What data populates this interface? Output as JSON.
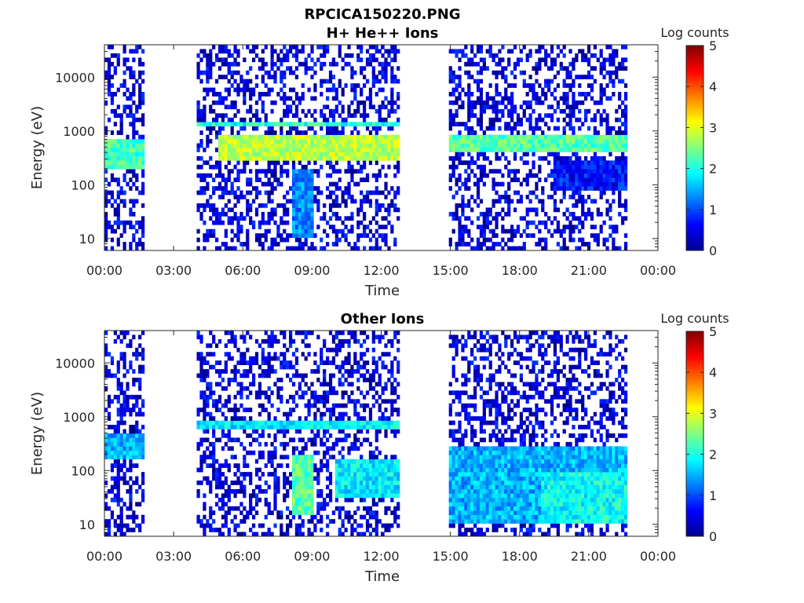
{
  "figure_title": "RPCICA150220.PNG",
  "chart_data": [
    {
      "type": "heatmap",
      "title": "H+ He++ Ions",
      "xlabel": "Time",
      "ylabel": "Energy (eV)",
      "y_scale": "log",
      "y_range_eV": [
        6,
        40000
      ],
      "x_range_hours": [
        0,
        24
      ],
      "x_ticks": [
        "00:00",
        "03:00",
        "06:00",
        "09:00",
        "12:00",
        "15:00",
        "18:00",
        "21:00",
        "00:00"
      ],
      "y_ticks": [
        "10",
        "100",
        "1000",
        "10000"
      ],
      "colorbar": {
        "label": "Log counts",
        "min": 0,
        "max": 5,
        "ticks": [
          "0",
          "1",
          "2",
          "3",
          "4",
          "5"
        ],
        "colormap": "jet"
      },
      "data_intervals_hours": [
        [
          0.0,
          1.7
        ],
        [
          4.0,
          12.8
        ],
        [
          15.0,
          22.7
        ]
      ],
      "features": [
        {
          "time_hours": [
            0.0,
            1.7
          ],
          "energy_eV": [
            200,
            700
          ],
          "log_counts": 2.2
        },
        {
          "time_hours": [
            4.0,
            12.8
          ],
          "energy_eV": [
            1200,
            1600
          ],
          "log_counts": 2.0
        },
        {
          "time_hours": [
            5.0,
            12.8
          ],
          "energy_eV": [
            300,
            800
          ],
          "log_counts": 2.8
        },
        {
          "time_hours": [
            8.2,
            9.0
          ],
          "energy_eV": [
            10,
            200
          ],
          "log_counts": 1.3
        },
        {
          "time_hours": [
            15.0,
            22.7
          ],
          "energy_eV": [
            400,
            800
          ],
          "log_counts": 2.3
        },
        {
          "time_hours": [
            19.5,
            22.7
          ],
          "energy_eV": [
            80,
            300
          ],
          "log_counts": 0.7
        }
      ],
      "grid": false
    },
    {
      "type": "heatmap",
      "title": "Other Ions",
      "xlabel": "Time",
      "ylabel": "Energy (eV)",
      "y_scale": "log",
      "y_range_eV": [
        6,
        40000
      ],
      "x_range_hours": [
        0,
        24
      ],
      "x_ticks": [
        "00:00",
        "03:00",
        "06:00",
        "09:00",
        "12:00",
        "15:00",
        "18:00",
        "21:00",
        "00:00"
      ],
      "y_ticks": [
        "10",
        "100",
        "1000",
        "10000"
      ],
      "colorbar": {
        "label": "Log counts",
        "min": 0,
        "max": 5,
        "ticks": [
          "0",
          "1",
          "2",
          "3",
          "4",
          "5"
        ],
        "colormap": "jet"
      },
      "data_intervals_hours": [
        [
          0.0,
          1.7
        ],
        [
          4.0,
          12.8
        ],
        [
          15.0,
          22.7
        ]
      ],
      "features": [
        {
          "time_hours": [
            0.0,
            1.7
          ],
          "energy_eV": [
            150,
            450
          ],
          "log_counts": 1.5
        },
        {
          "time_hours": [
            4.0,
            12.8
          ],
          "energy_eV": [
            550,
            800
          ],
          "log_counts": 1.8
        },
        {
          "time_hours": [
            8.2,
            9.0
          ],
          "energy_eV": [
            15,
            200
          ],
          "log_counts": 2.3
        },
        {
          "time_hours": [
            10.0,
            12.8
          ],
          "energy_eV": [
            30,
            150
          ],
          "log_counts": 1.8
        },
        {
          "time_hours": [
            15.0,
            22.7
          ],
          "energy_eV": [
            10,
            300
          ],
          "log_counts": 1.5
        },
        {
          "time_hours": [
            19.0,
            22.7
          ],
          "energy_eV": [
            10,
            100
          ],
          "log_counts": 1.9
        }
      ],
      "grid": false
    }
  ]
}
